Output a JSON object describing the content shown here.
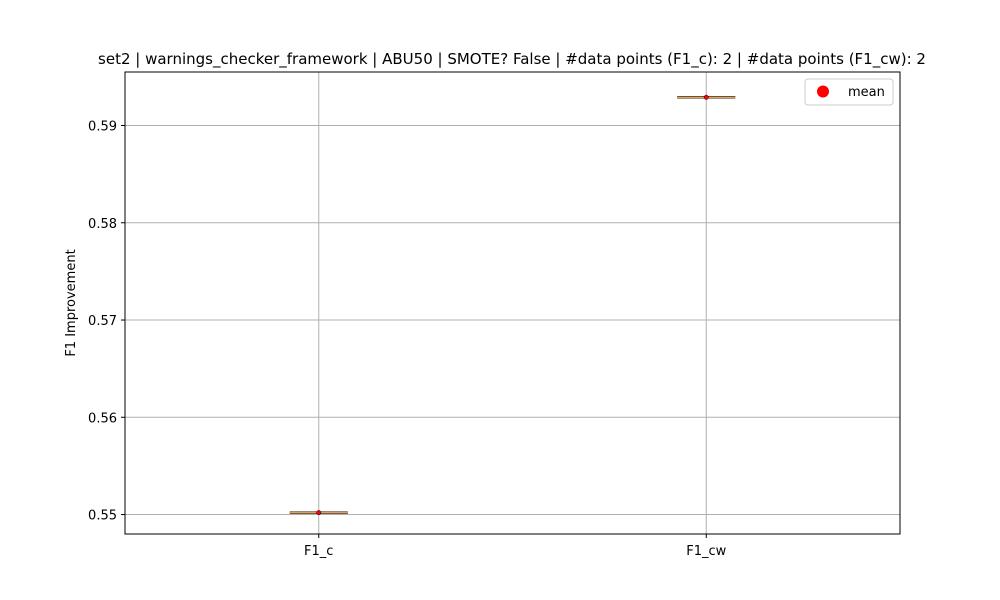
{
  "chart_data": {
    "type": "box",
    "title": "set2 | warnings_checker_framework | ABU50 | SMOTE? False | #data points (F1_c): 2 | #data points (F1_cw): 2",
    "xlabel": "",
    "ylabel": "F1 Improvement",
    "categories": [
      "F1_c",
      "F1_cw"
    ],
    "values": [
      0.5502,
      0.5929
    ],
    "means": [
      0.5502,
      0.5929
    ],
    "ylim": [
      0.548,
      0.5955
    ],
    "yticks": [
      0.55,
      0.56,
      0.57,
      0.58,
      0.59
    ],
    "ytick_labels": [
      "0.55",
      "0.56",
      "0.57",
      "0.58",
      "0.59"
    ],
    "grid": true,
    "legend": {
      "position": "top-right",
      "entries": [
        {
          "label": "mean",
          "color": "#ff0000",
          "marker": "circle"
        }
      ]
    },
    "colors": {
      "median": "#e0a060",
      "box": "#000000",
      "mean": "#ff0000",
      "grid": "#b0b0b0"
    }
  }
}
